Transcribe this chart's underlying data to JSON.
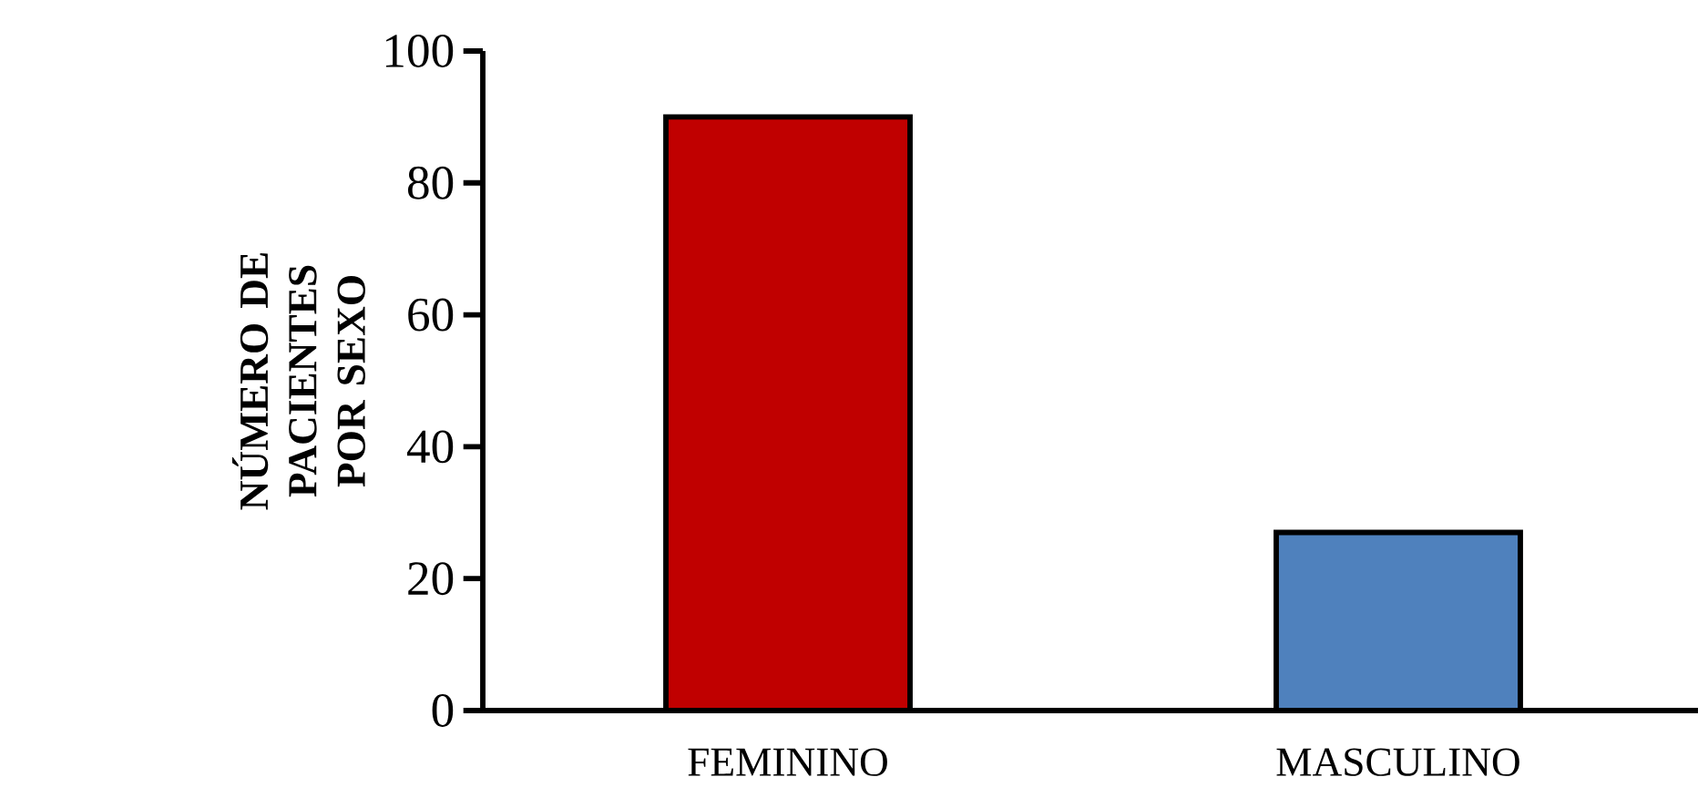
{
  "chart_data": {
    "type": "bar",
    "ylabel": "NÚMERO DE PACIENTES POR SEXO",
    "categories": [
      "FEMININO",
      "MASCULINO"
    ],
    "values": [
      90,
      27
    ],
    "colors": [
      "#c00000",
      "#4f81bd"
    ],
    "ylim": [
      0,
      100
    ],
    "yticks": [
      0,
      20,
      40,
      60,
      80,
      100
    ]
  }
}
